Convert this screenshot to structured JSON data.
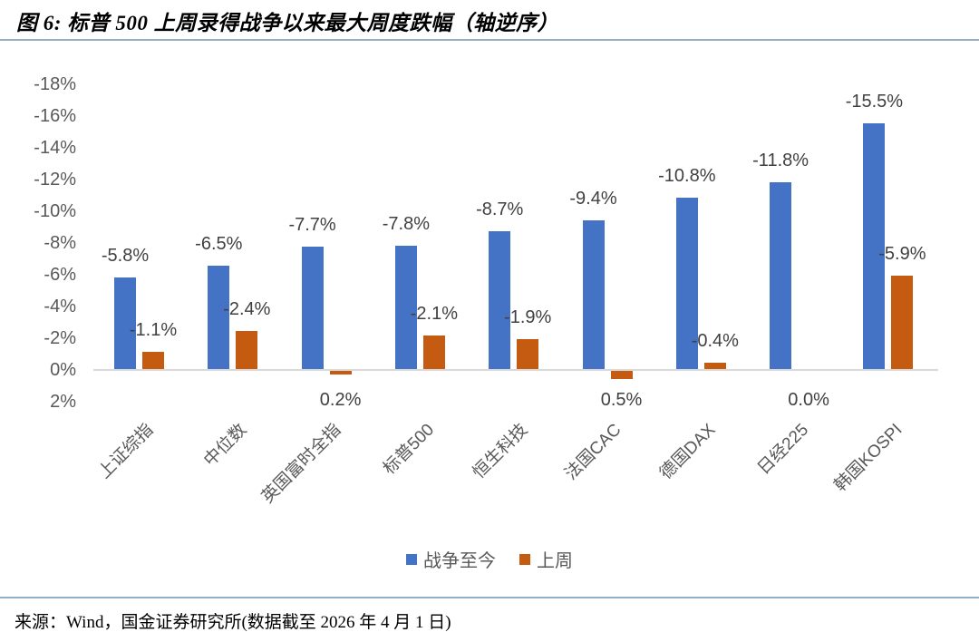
{
  "figure": {
    "title": "图 6: 标普 500 上周录得战争以来最大周度跌幅（轴逆序）",
    "source_note": "来源：Wind，国金证券研究所(数据截至 2026 年 4 月 1 日)",
    "rule_color": "#94AFC4"
  },
  "colors": {
    "series_blue": "#4472C4",
    "series_orange": "#C55A11",
    "axis_text": "#595959",
    "data_label": "#404040",
    "zero_line": "#D9D9D9"
  },
  "chart_data": {
    "type": "bar",
    "title": "图 6: 标普 500 上周录得战争以来最大周度跌幅（轴逆序）",
    "axis_inverted": true,
    "grid": false,
    "legend_position": "bottom",
    "ylabel": "",
    "xlabel": "",
    "ylim_inverted": [
      -18,
      2
    ],
    "y_ticks": [
      "-18%",
      "-16%",
      "-14%",
      "-12%",
      "-10%",
      "-8%",
      "-6%",
      "-4%",
      "-2%",
      "0%",
      "2%"
    ],
    "y_tick_values": [
      -18,
      -16,
      -14,
      -12,
      -10,
      -8,
      -6,
      -4,
      -2,
      0,
      2
    ],
    "categories": [
      "上证综指",
      "中位数",
      "英国富时全指",
      "标普500",
      "恒生科技",
      "法国CAC",
      "德国DAX",
      "日经225",
      "韩国KOSPI"
    ],
    "series": [
      {
        "name": "战争至今",
        "color": "#4472C4",
        "values": [
          -5.8,
          -6.5,
          -7.7,
          -7.8,
          -8.7,
          -9.4,
          -10.8,
          -11.8,
          -15.5
        ],
        "labels": [
          "-5.8%",
          "-6.5%",
          "-7.7%",
          "-7.8%",
          "-8.7%",
          "-9.4%",
          "-10.8%",
          "-11.8%",
          "-15.5%"
        ]
      },
      {
        "name": "上周",
        "color": "#C55A11",
        "values": [
          -1.1,
          -2.4,
          0.2,
          -2.1,
          -1.9,
          0.5,
          -0.4,
          0.0,
          -5.9
        ],
        "labels": [
          "-1.1%",
          "-2.4%",
          "0.2%",
          "-2.1%",
          "-1.9%",
          "0.5%",
          "-0.4%",
          "0.0%",
          "-5.9%"
        ]
      }
    ]
  }
}
